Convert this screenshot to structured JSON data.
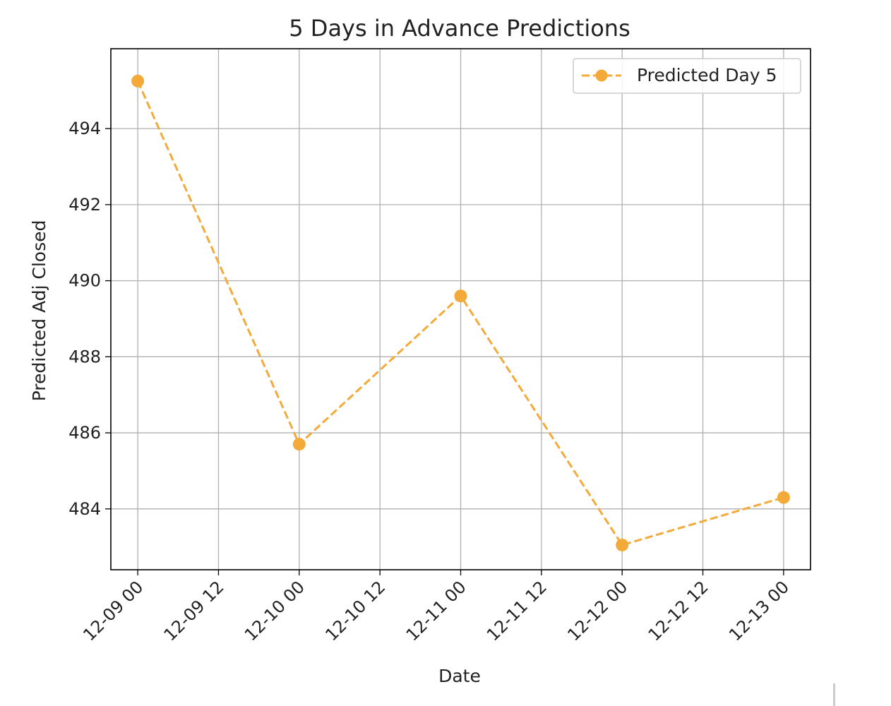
{
  "chart_data": {
    "type": "line",
    "title": "5 Days in Advance Predictions",
    "xlabel": "Date",
    "ylabel": "Predicted Adj Closed",
    "x_ticks": [
      "12-09 00",
      "12-09 12",
      "12-10 00",
      "12-10 12",
      "12-11 00",
      "12-11 12",
      "12-12 00",
      "12-12 12",
      "12-13 00"
    ],
    "y_ticks": [
      484,
      486,
      488,
      490,
      492,
      494
    ],
    "xlim": [
      "12-08 20",
      "12-13 04"
    ],
    "ylim": [
      482.4,
      496.1
    ],
    "grid": true,
    "legend_position": "top-right",
    "series": [
      {
        "name": "Predicted Day 5",
        "color": "#F4AA38",
        "line_style": "dashed",
        "marker": "circle",
        "x": [
          "12-09 00",
          "12-10 00",
          "12-11 00",
          "12-12 00",
          "12-13 00"
        ],
        "y": [
          495.25,
          485.7,
          489.6,
          483.05,
          484.3
        ]
      }
    ]
  }
}
